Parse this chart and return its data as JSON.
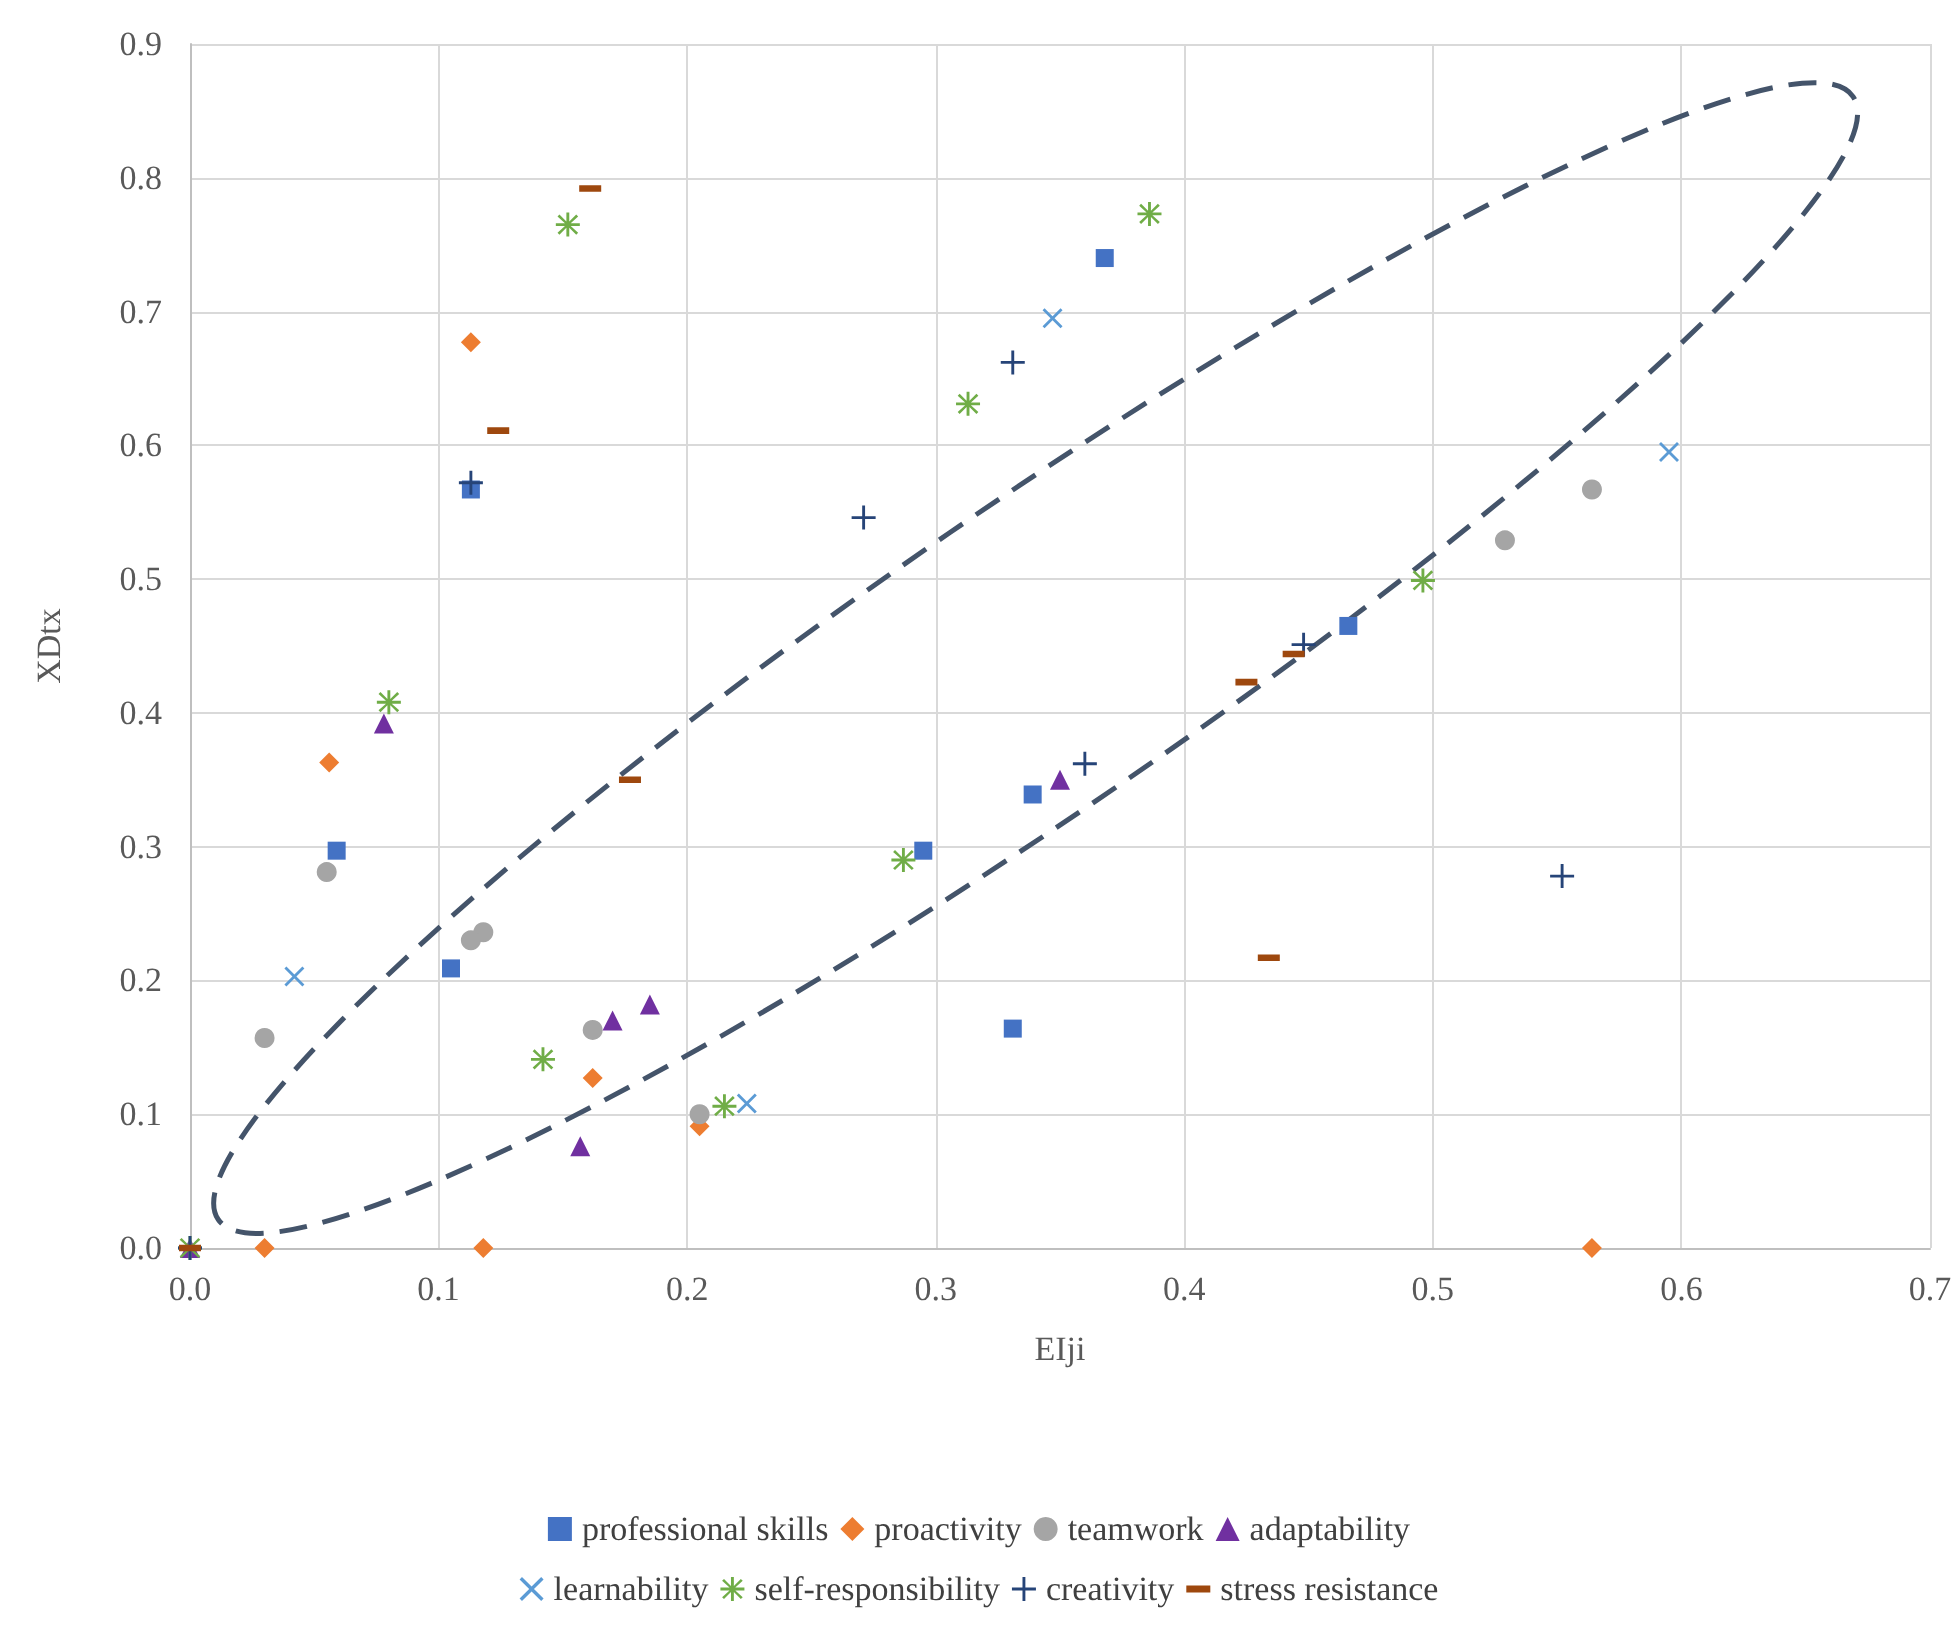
{
  "chart_data": {
    "type": "scatter",
    "xlabel": "EIji",
    "ylabel": "XDtx",
    "xlim": [
      0,
      0.7
    ],
    "ylim": [
      0,
      0.9
    ],
    "xticks": [
      {
        "value": 0,
        "label": "0.0"
      },
      0.1,
      0.2,
      0.3,
      0.4,
      0.5,
      0.6,
      0.7
    ],
    "yticks": [
      {
        "value": 0,
        "label": "0.0"
      },
      0.1,
      0.2,
      0.3,
      0.4,
      0.5,
      0.6,
      0.7,
      0.8,
      0.9
    ],
    "grid": true,
    "legend": "bottom",
    "series": [
      {
        "name": "professional skills",
        "color": "#4472c4",
        "marker": "square",
        "x": [
          0.368,
          0.113,
          0.059,
          0.105,
          0.339,
          0.295,
          0.331,
          0.466
        ],
        "values": [
          0.74,
          0.567,
          0.297,
          0.209,
          0.339,
          0.297,
          0.164,
          0.465
        ]
      },
      {
        "name": "proactivity",
        "color": "#ed7d31",
        "marker": "diamond",
        "x": [
          0.113,
          0.056,
          0.162,
          0.205,
          0.03,
          0.118,
          0.564
        ],
        "values": [
          0.677,
          0.363,
          0.127,
          0.091,
          0,
          0,
          0
        ]
      },
      {
        "name": "teamwork",
        "color": "#a5a5a5",
        "marker": "circle",
        "x": [
          0.055,
          0.118,
          0.113,
          0.03,
          0.162,
          0.205,
          0.529,
          0.564
        ],
        "values": [
          0.281,
          0.236,
          0.23,
          0.157,
          0.163,
          0.1,
          0.529,
          0.567
        ]
      },
      {
        "name": "adaptability",
        "color": "#7030a0",
        "marker": "triangle",
        "x": [
          0.078,
          0.185,
          0.17,
          0.157,
          0.35,
          0
        ],
        "values": [
          0.392,
          0.182,
          0.17,
          0.076,
          0.35,
          0
        ]
      },
      {
        "name": "learnability",
        "color": "#5b9bd5",
        "marker": "cross",
        "x": [
          0.042,
          0.224,
          0.347,
          0.595
        ],
        "values": [
          0.203,
          0.108,
          0.695,
          0.595
        ]
      },
      {
        "name": "self-responsibility",
        "color": "#70ad47",
        "marker": "star",
        "x": [
          0.152,
          0.08,
          0.142,
          0.215,
          0.386,
          0.313,
          0.287,
          0.496,
          0
        ],
        "values": [
          0.765,
          0.408,
          0.141,
          0.106,
          0.773,
          0.631,
          0.29,
          0.499,
          0
        ]
      },
      {
        "name": "creativity",
        "color": "#264478",
        "marker": "plus",
        "x": [
          0.113,
          0.331,
          0.271,
          0.448,
          0.36,
          0.552,
          0
        ],
        "values": [
          0.572,
          0.662,
          0.546,
          0.451,
          0.362,
          0.278,
          0
        ]
      },
      {
        "name": "stress resistance",
        "color": "#9e480e",
        "x": [
          0.161,
          0.124,
          0.177,
          0.444,
          0.425,
          0.434,
          0
        ],
        "values": [
          0.792,
          0.611,
          0.35,
          0.444,
          0.423,
          0.217,
          0
        ]
      }
    ]
  }
}
